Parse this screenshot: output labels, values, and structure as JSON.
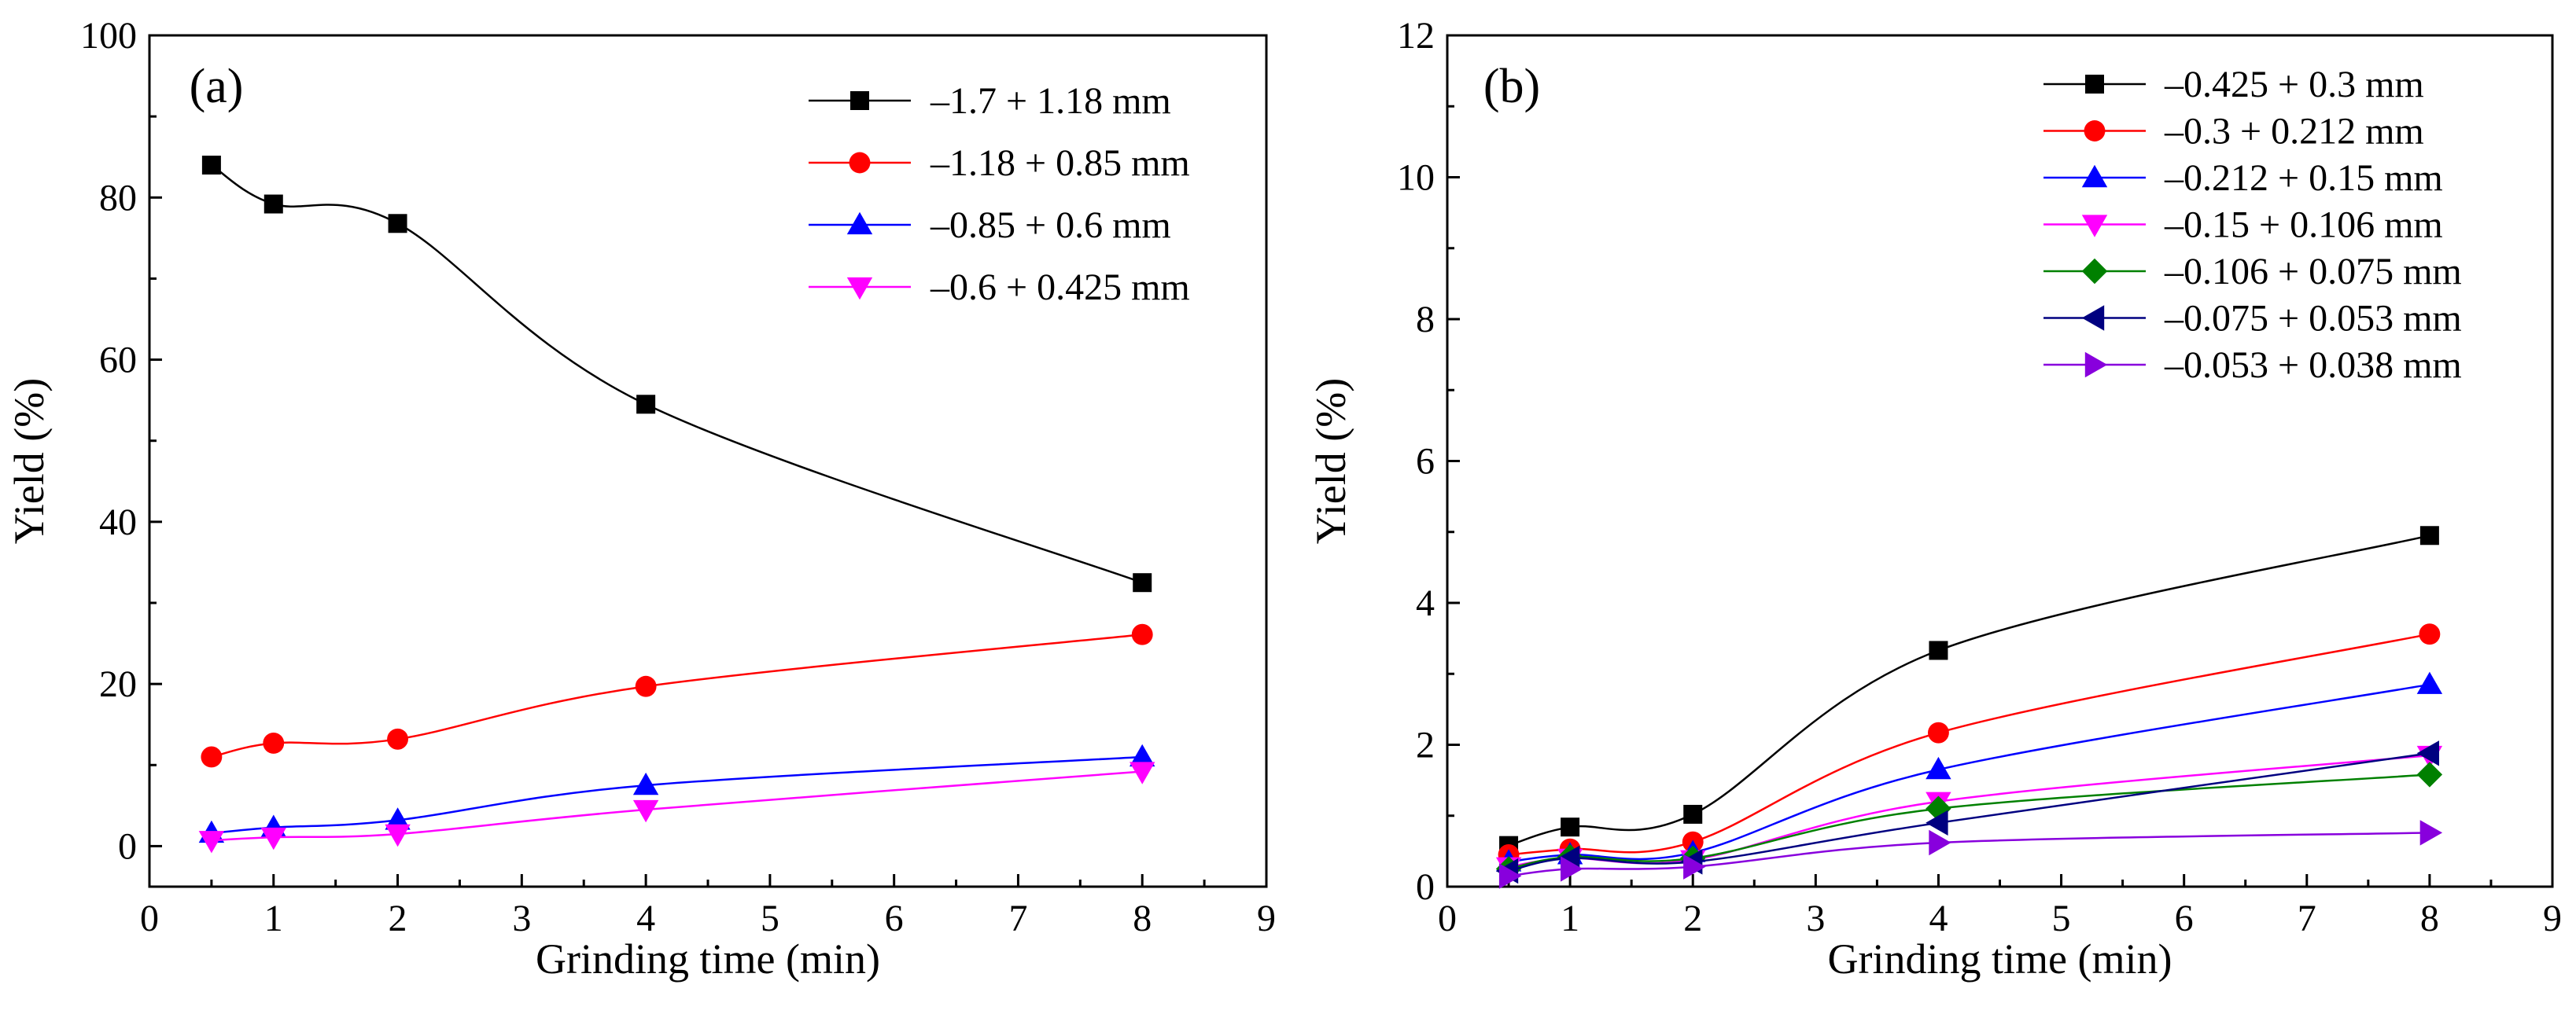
{
  "chart_data": [
    {
      "type": "line",
      "panel_label": "(a)",
      "xlabel": "Grinding time (min)",
      "ylabel": "Yield (%)",
      "xlim": [
        0,
        9
      ],
      "ylim": [
        -5,
        100
      ],
      "xticks": [
        0,
        1,
        2,
        3,
        4,
        5,
        6,
        7,
        8,
        9
      ],
      "yticks": [
        0,
        20,
        40,
        60,
        80,
        100
      ],
      "x": [
        0.5,
        1,
        2,
        4,
        8
      ],
      "legend_position": "top-right",
      "series": [
        {
          "name": "–1.7 + 1.18 mm",
          "marker": "square",
          "color": "#000000",
          "values": [
            84.0,
            79.2,
            76.8,
            54.5,
            32.5
          ]
        },
        {
          "name": "–1.18 + 0.85 mm",
          "marker": "circle",
          "color": "#ff0000",
          "values": [
            11.0,
            12.7,
            13.2,
            19.7,
            26.1
          ]
        },
        {
          "name": "–0.85 + 0.6 mm",
          "marker": "triangle-up",
          "color": "#0000ff",
          "values": [
            1.6,
            2.3,
            3.2,
            7.5,
            11.0
          ]
        },
        {
          "name": "–0.6 + 0.425 mm",
          "marker": "triangle-down",
          "color": "#ff00ff",
          "values": [
            0.7,
            1.1,
            1.5,
            4.5,
            9.2
          ]
        }
      ]
    },
    {
      "type": "line",
      "panel_label": "(b)",
      "xlabel": "Grinding time (min)",
      "ylabel": "Yield (%)",
      "xlim": [
        0,
        9
      ],
      "ylim": [
        0,
        12
      ],
      "xticks": [
        0,
        1,
        2,
        3,
        4,
        5,
        6,
        7,
        8,
        9
      ],
      "yticks": [
        0,
        2,
        4,
        6,
        8,
        10,
        12
      ],
      "x": [
        0.5,
        1,
        2,
        4,
        8
      ],
      "legend_position": "top-right",
      "series": [
        {
          "name": "–0.425 + 0.3 mm",
          "marker": "square",
          "color": "#000000",
          "values": [
            0.58,
            0.84,
            1.02,
            3.33,
            4.95
          ]
        },
        {
          "name": "–0.3 + 0.212 mm",
          "marker": "circle",
          "color": "#ff0000",
          "values": [
            0.45,
            0.53,
            0.63,
            2.17,
            3.56
          ]
        },
        {
          "name": "–0.212 + 0.15 mm",
          "marker": "triangle-up",
          "color": "#0000ff",
          "values": [
            0.35,
            0.45,
            0.48,
            1.65,
            2.85
          ]
        },
        {
          "name": "–0.15 + 0.106 mm",
          "marker": "triangle-down",
          "color": "#ff00ff",
          "values": [
            0.28,
            0.4,
            0.38,
            1.2,
            1.85
          ]
        },
        {
          "name": "–0.106 + 0.075 mm",
          "marker": "diamond",
          "color": "#008000",
          "values": [
            0.25,
            0.42,
            0.4,
            1.1,
            1.58
          ]
        },
        {
          "name": "–0.075 + 0.053 mm",
          "marker": "triangle-left",
          "color": "#000080",
          "values": [
            0.22,
            0.4,
            0.35,
            0.9,
            1.88
          ]
        },
        {
          "name": "–0.053 + 0.038 mm",
          "marker": "triangle-right",
          "color": "#8800dd",
          "values": [
            0.15,
            0.25,
            0.28,
            0.62,
            0.76
          ]
        }
      ]
    }
  ]
}
